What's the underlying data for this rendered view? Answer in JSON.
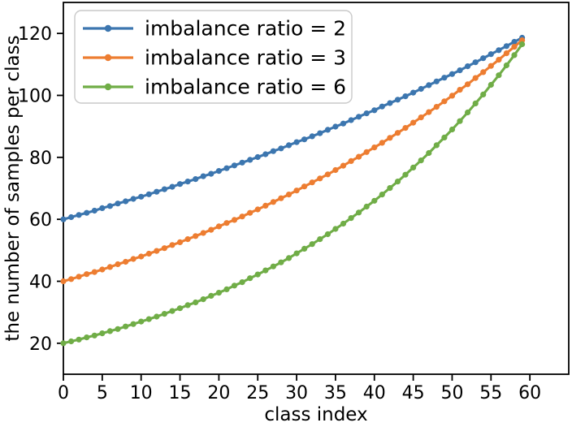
{
  "chart_data": {
    "type": "line",
    "title": "",
    "xlabel": "class index",
    "ylabel": "the number of samples per class",
    "xlim": [
      0,
      65
    ],
    "ylim": [
      10,
      130
    ],
    "xticks": [
      0,
      5,
      10,
      15,
      20,
      25,
      30,
      35,
      40,
      45,
      50,
      55,
      60
    ],
    "yticks": [
      20,
      40,
      60,
      80,
      100,
      120
    ],
    "grid": false,
    "legend_position": "upper left",
    "marker": "circle",
    "x": [
      0,
      1,
      2,
      3,
      4,
      5,
      6,
      7,
      8,
      9,
      10,
      11,
      12,
      13,
      14,
      15,
      16,
      17,
      18,
      19,
      20,
      21,
      22,
      23,
      24,
      25,
      26,
      27,
      28,
      29,
      30,
      31,
      32,
      33,
      34,
      35,
      36,
      37,
      38,
      39,
      40,
      41,
      42,
      43,
      44,
      45,
      46,
      47,
      48,
      49,
      50,
      51,
      52,
      53,
      54,
      55,
      56,
      57,
      58,
      59
    ],
    "series": [
      {
        "name": "imbalance ratio = 2",
        "color": "#3c76af",
        "values": [
          60.0,
          60.7,
          61.4,
          62.1,
          62.8,
          63.6,
          64.3,
          65.1,
          65.8,
          66.6,
          67.3,
          68.1,
          68.9,
          69.7,
          70.5,
          71.4,
          72.2,
          73.0,
          73.9,
          74.7,
          75.6,
          76.5,
          77.4,
          78.3,
          79.2,
          80.1,
          81.0,
          82.0,
          82.9,
          83.9,
          84.9,
          85.8,
          86.8,
          87.8,
          88.9,
          89.9,
          90.9,
          92.0,
          93.1,
          94.2,
          95.2,
          96.4,
          97.5,
          98.6,
          99.7,
          100.9,
          102.1,
          103.3,
          104.5,
          105.7,
          106.9,
          108.1,
          109.4,
          110.7,
          112.0,
          113.3,
          114.6,
          115.9,
          117.3,
          118.6
        ]
      },
      {
        "name": "imbalance ratio = 3",
        "color": "#ed7d31",
        "values": [
          40.0,
          40.7,
          41.5,
          42.3,
          43.0,
          43.8,
          44.6,
          45.5,
          46.3,
          47.2,
          48.0,
          48.9,
          49.8,
          50.7,
          51.7,
          52.6,
          53.6,
          54.6,
          55.6,
          56.6,
          57.7,
          58.8,
          59.8,
          60.9,
          62.1,
          63.2,
          64.4,
          65.6,
          66.8,
          68.0,
          69.3,
          70.6,
          71.9,
          73.2,
          74.5,
          75.9,
          77.3,
          78.8,
          80.2,
          81.7,
          83.2,
          84.7,
          86.3,
          87.9,
          89.5,
          91.2,
          92.9,
          94.6,
          96.3,
          98.1,
          99.9,
          101.8,
          103.6,
          105.6,
          107.5,
          109.5,
          111.5,
          113.6,
          115.7,
          117.8
        ]
      },
      {
        "name": "imbalance ratio = 6",
        "color": "#70ad47",
        "values": [
          20.0,
          20.6,
          21.2,
          21.9,
          22.5,
          23.2,
          23.9,
          24.6,
          25.4,
          26.2,
          27.0,
          27.8,
          28.6,
          29.5,
          30.4,
          31.3,
          32.3,
          33.2,
          34.2,
          35.3,
          36.3,
          37.4,
          38.6,
          39.7,
          41.0,
          42.2,
          43.5,
          44.8,
          46.1,
          47.5,
          49.0,
          50.5,
          52.0,
          53.6,
          55.2,
          56.9,
          58.6,
          60.4,
          62.2,
          64.1,
          66.0,
          68.0,
          70.1,
          72.2,
          74.4,
          76.7,
          79.0,
          81.4,
          83.9,
          86.4,
          89.0,
          91.7,
          94.5,
          97.4,
          100.3,
          103.4,
          106.5,
          109.7,
          113.0,
          116.5
        ]
      }
    ]
  }
}
